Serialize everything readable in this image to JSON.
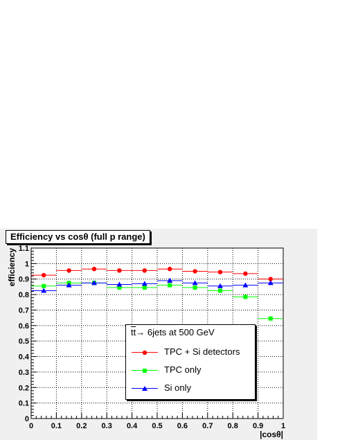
{
  "chart_data": {
    "type": "scatter",
    "title": "Efficiency vs cosθ (full p range)",
    "xlabel": "|cosθ|",
    "ylabel": "efficiency",
    "xlim": [
      0,
      1
    ],
    "ylim": [
      0,
      1.1
    ],
    "grid": true,
    "x_ticks": [
      "0",
      "0.1",
      "0.2",
      "0.3",
      "0.4",
      "0.5",
      "0.6",
      "0.7",
      "0.8",
      "0.9",
      "1"
    ],
    "y_ticks": [
      "0",
      "0.1",
      "0.2",
      "0.3",
      "0.4",
      "0.5",
      "0.6",
      "0.7",
      "0.8",
      "0.9",
      "1",
      "1.1"
    ],
    "bin_edges": [
      0,
      0.1,
      0.2,
      0.3,
      0.4,
      0.5,
      0.6,
      0.7,
      0.8,
      0.9,
      1.0
    ],
    "x": [
      0.05,
      0.15,
      0.25,
      0.35,
      0.45,
      0.55,
      0.65,
      0.75,
      0.85,
      0.95
    ],
    "series": [
      {
        "name": "TPC + Si detectors",
        "color": "#ff0000",
        "marker": "circle",
        "values": [
          0.925,
          0.955,
          0.965,
          0.955,
          0.955,
          0.965,
          0.95,
          0.945,
          0.935,
          0.9
        ]
      },
      {
        "name": "TPC only",
        "color": "#00ff00",
        "marker": "square",
        "values": [
          0.855,
          0.875,
          0.875,
          0.845,
          0.845,
          0.86,
          0.845,
          0.825,
          0.785,
          0.645
        ]
      },
      {
        "name": "Si only",
        "color": "#0000ff",
        "marker": "triangle",
        "values": [
          0.825,
          0.86,
          0.875,
          0.865,
          0.87,
          0.89,
          0.875,
          0.855,
          0.86,
          0.875
        ]
      }
    ],
    "legend": {
      "title_prefix": "tt",
      "title_rest": "→ 6jets at 500 GeV",
      "position": "center-right"
    }
  }
}
